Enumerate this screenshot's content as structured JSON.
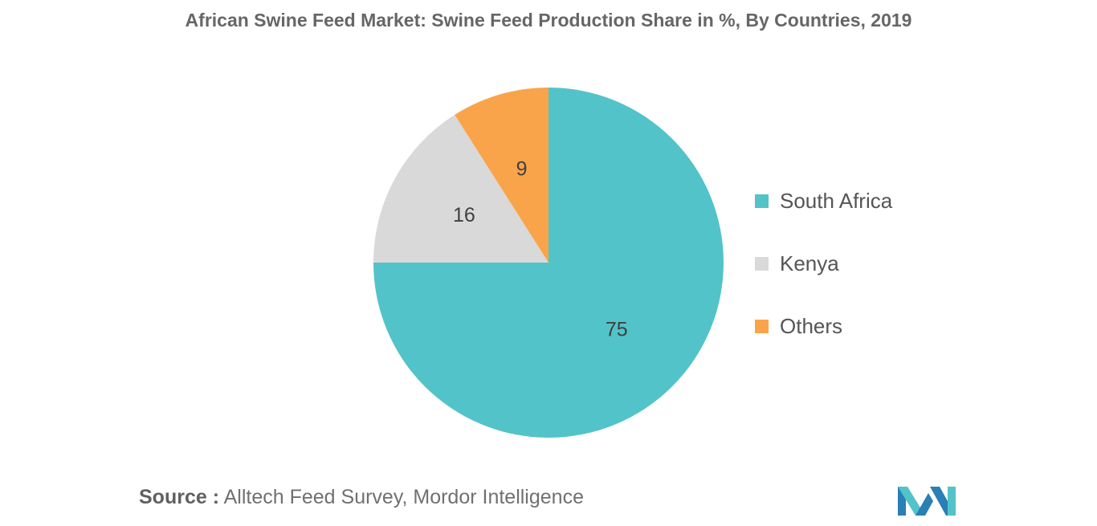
{
  "chart_data": {
    "type": "pie",
    "title": "African Swine Feed Market: Swine Feed Production Share in %, By Countries, 2019",
    "slices": [
      {
        "label": "South Africa",
        "value": 75,
        "color": "#52c3c9"
      },
      {
        "label": "Kenya",
        "value": 16,
        "color": "#d9d9d9"
      },
      {
        "label": "Others",
        "value": 9,
        "color": "#f9a44a"
      }
    ],
    "start": "12 o'clock",
    "direction": "clockwise",
    "legend_position": "right"
  },
  "source": {
    "label": "Source :",
    "text": "Alltech Feed Survey, Mordor Intelligence"
  },
  "logo": {
    "icon": "mordor-intelligence-logo",
    "colors": [
      "#2a7fb5",
      "#52c3c9"
    ]
  }
}
